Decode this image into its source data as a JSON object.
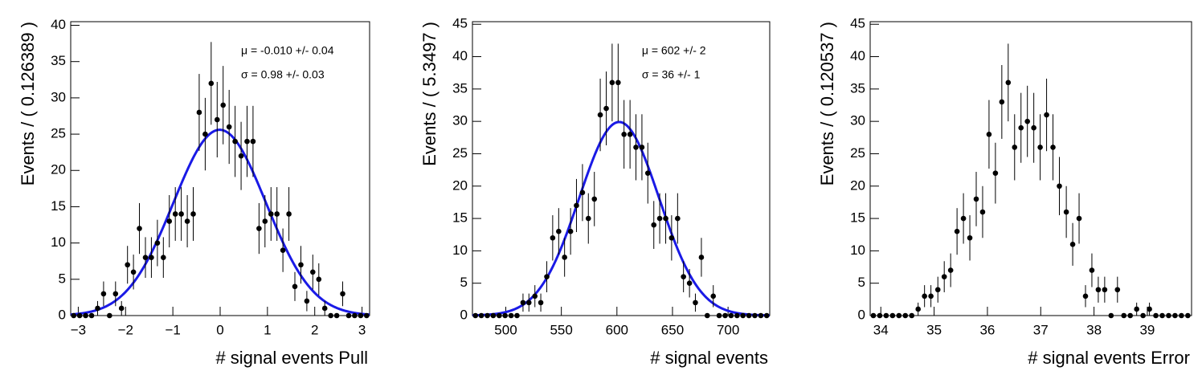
{
  "chart_data": [
    {
      "type": "scatter",
      "ylabel": "Events / ( 0.126389 )",
      "xlabel": "# signal events Pull",
      "annotations": [
        "μ = -0.010 +/- 0.04",
        "σ =  0.98 +/- 0.03"
      ],
      "xlim": [
        -3.16,
        3.16
      ],
      "ylim": [
        0,
        40.5
      ],
      "xticks": [
        {
          "value": -3,
          "label": "−3"
        },
        {
          "value": -2,
          "label": "−2"
        },
        {
          "value": -1,
          "label": "−1"
        },
        0,
        1,
        2,
        3
      ],
      "yticks": [
        0,
        5,
        10,
        15,
        20,
        25,
        30,
        35,
        40
      ],
      "color": "#000000",
      "x": [
        -3.097,
        -2.971,
        -2.844,
        -2.718,
        -2.591,
        -2.465,
        -2.339,
        -2.212,
        -2.086,
        -1.959,
        -1.833,
        -1.707,
        -1.58,
        -1.454,
        -1.327,
        -1.201,
        -1.075,
        -0.948,
        -0.822,
        -0.695,
        -0.569,
        -0.443,
        -0.316,
        -0.19,
        -0.063,
        0.063,
        0.19,
        0.316,
        0.443,
        0.569,
        0.695,
        0.822,
        0.948,
        1.075,
        1.201,
        1.327,
        1.454,
        1.58,
        1.707,
        1.833,
        1.959,
        2.086,
        2.212,
        2.339,
        2.465,
        2.591,
        2.718,
        2.844,
        2.971,
        3.097
      ],
      "values": [
        0,
        0,
        0,
        0,
        1,
        3,
        0,
        3,
        1,
        7,
        6,
        12,
        8,
        8,
        10,
        8,
        13,
        14,
        14,
        13,
        14,
        28,
        25,
        32,
        27,
        29,
        26,
        24,
        22,
        24,
        24,
        12,
        13,
        14,
        14,
        9,
        14,
        4,
        7,
        2,
        6,
        5,
        1,
        0,
        0,
        3,
        0,
        0,
        0,
        0
      ],
      "errors": [
        0,
        0,
        0,
        0,
        1,
        1.7,
        0,
        1.7,
        1,
        2.6,
        2.4,
        3.5,
        2.8,
        2.8,
        3.2,
        2.8,
        3.6,
        3.7,
        3.7,
        3.6,
        3.7,
        5.3,
        5,
        5.7,
        5.2,
        5.4,
        5.1,
        4.9,
        4.7,
        4.9,
        4.9,
        3.5,
        3.6,
        3.7,
        3.7,
        3,
        3.7,
        2,
        2.6,
        1.4,
        2.4,
        2.2,
        1,
        0,
        0,
        1.7,
        0,
        0,
        0,
        0
      ],
      "fit": {
        "mean": -0.01,
        "sigma": 0.98,
        "peak": 25.6,
        "color": "#1a1ae6"
      }
    },
    {
      "type": "scatter",
      "ylabel": "Events / ( 5.3497 )",
      "xlabel": "# signal events",
      "annotations": [
        "μ =  602 +/- 2",
        "σ =  36 +/- 1"
      ],
      "xlim": [
        470,
        737.5
      ],
      "ylim": [
        0,
        45.4
      ],
      "xticks": [
        500,
        550,
        600,
        650,
        700
      ],
      "yticks": [
        0,
        5,
        10,
        15,
        20,
        25,
        30,
        35,
        40,
        45
      ],
      "color": "#000000",
      "x": [
        472.7,
        478.0,
        483.4,
        488.7,
        494.1,
        499.4,
        504.8,
        510.1,
        515.5,
        520.8,
        526.2,
        531.5,
        536.9,
        542.2,
        547.6,
        552.9,
        558.3,
        563.6,
        569.0,
        574.3,
        579.7,
        585.0,
        590.4,
        595.7,
        601.1,
        606.4,
        611.8,
        617.1,
        622.5,
        627.8,
        633.2,
        638.5,
        643.9,
        649.2,
        654.6,
        659.9,
        665.3,
        670.6,
        676.0,
        681.3,
        686.7,
        692.0,
        697.4,
        702.7,
        708.1,
        713.4,
        718.8,
        724.1,
        729.5,
        734.8
      ],
      "values": [
        0,
        0,
        0,
        0,
        0,
        0,
        0,
        0,
        2,
        2,
        3,
        2,
        6,
        12,
        13,
        9,
        13,
        17,
        19,
        15,
        18,
        31,
        32,
        36,
        36,
        28,
        28,
        26,
        26,
        22,
        14,
        15,
        15,
        12,
        15,
        6,
        5,
        2,
        9,
        0,
        3,
        0,
        0,
        0,
        0,
        0,
        0,
        0,
        0,
        0
      ],
      "errors": [
        0,
        0,
        0,
        0,
        0,
        0,
        0,
        0,
        1.4,
        1.4,
        1.7,
        1.4,
        2.4,
        3.5,
        3.6,
        3,
        3.6,
        4.1,
        4.4,
        3.9,
        4.2,
        5.6,
        5.7,
        6,
        6,
        5.3,
        5.3,
        5.1,
        5.1,
        4.7,
        3.7,
        3.9,
        3.9,
        3.5,
        3.9,
        2.4,
        2.2,
        1.4,
        3,
        0,
        1.7,
        0,
        0,
        0,
        0,
        0,
        0,
        0,
        0,
        0
      ],
      "fit": {
        "mean": 602,
        "sigma": 36,
        "peak": 29.9,
        "color": "#1a1ae6"
      }
    },
    {
      "type": "scatter",
      "ylabel": "Events / ( 0.120537 )",
      "xlabel": "# signal events Error",
      "xlim": [
        33.8,
        39.83
      ],
      "ylim": [
        0,
        45.4
      ],
      "xticks": [
        34,
        35,
        36,
        37,
        38,
        39
      ],
      "yticks": [
        0,
        5,
        10,
        15,
        20,
        25,
        30,
        35,
        40,
        45
      ],
      "color": "#000000",
      "x": [
        33.86,
        33.98,
        34.1,
        34.22,
        34.34,
        34.46,
        34.58,
        34.7,
        34.82,
        34.94,
        35.07,
        35.19,
        35.31,
        35.43,
        35.55,
        35.67,
        35.79,
        35.91,
        36.03,
        36.15,
        36.27,
        36.39,
        36.51,
        36.63,
        36.75,
        36.87,
        36.99,
        37.11,
        37.23,
        37.35,
        37.48,
        37.6,
        37.72,
        37.84,
        37.96,
        38.08,
        38.2,
        38.32,
        38.44,
        38.56,
        38.68,
        38.8,
        38.92,
        39.04,
        39.16,
        39.28,
        39.4,
        39.52,
        39.64,
        39.76
      ],
      "values": [
        0,
        0,
        0,
        0,
        0,
        0,
        0,
        1,
        3,
        3,
        4,
        6,
        7,
        13,
        15,
        12,
        18,
        16,
        28,
        22,
        33,
        36,
        26,
        29,
        30,
        29,
        26,
        31,
        26,
        20,
        16,
        11,
        15,
        3,
        7,
        4,
        4,
        0,
        4,
        0,
        0,
        1,
        0,
        1,
        0,
        0,
        0,
        0,
        0,
        0
      ],
      "errors": [
        0,
        0,
        0,
        0,
        0,
        0,
        0,
        1,
        1.7,
        1.7,
        2,
        2.4,
        2.6,
        3.6,
        3.9,
        3.5,
        4.2,
        4,
        5.3,
        4.7,
        5.7,
        6,
        5.1,
        5.4,
        5.5,
        5.4,
        5.1,
        5.6,
        5.1,
        4.5,
        4,
        3.3,
        3.9,
        1.7,
        2.6,
        2,
        2,
        0,
        2,
        0,
        0,
        1,
        0,
        1,
        0,
        0,
        0,
        0,
        0,
        0
      ]
    }
  ]
}
